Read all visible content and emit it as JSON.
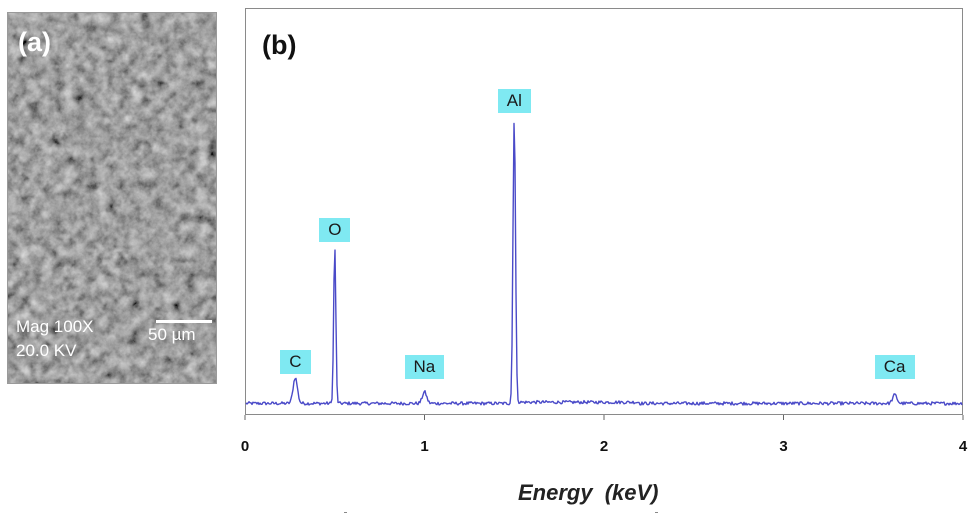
{
  "panel_a": {
    "panel_label": "(a)",
    "magnification_text": "Mag 100X",
    "voltage_text": "20.0 KV",
    "scale_bar_text": "50 µm"
  },
  "panel_b": {
    "panel_label": "(b)"
  },
  "chart_data": {
    "type": "line",
    "xlabel": "Energy (keV)",
    "ylabel": "",
    "xlim": [
      0,
      4
    ],
    "x_ticks": [
      "0",
      "1",
      "2",
      "3",
      "4"
    ],
    "grid": false,
    "line_color": "#4a4ac8",
    "label_color": "#7fe9f2",
    "peaks": [
      {
        "element": "C",
        "energy": 0.28,
        "relative_height": 0.09
      },
      {
        "element": "O",
        "energy": 0.5,
        "relative_height": 0.55
      },
      {
        "element": "Na",
        "energy": 1.0,
        "relative_height": 0.04
      },
      {
        "element": "Al",
        "energy": 1.5,
        "relative_height": 1.0
      },
      {
        "element": "Ca",
        "energy": 3.62,
        "relative_height": 0.03
      }
    ]
  }
}
